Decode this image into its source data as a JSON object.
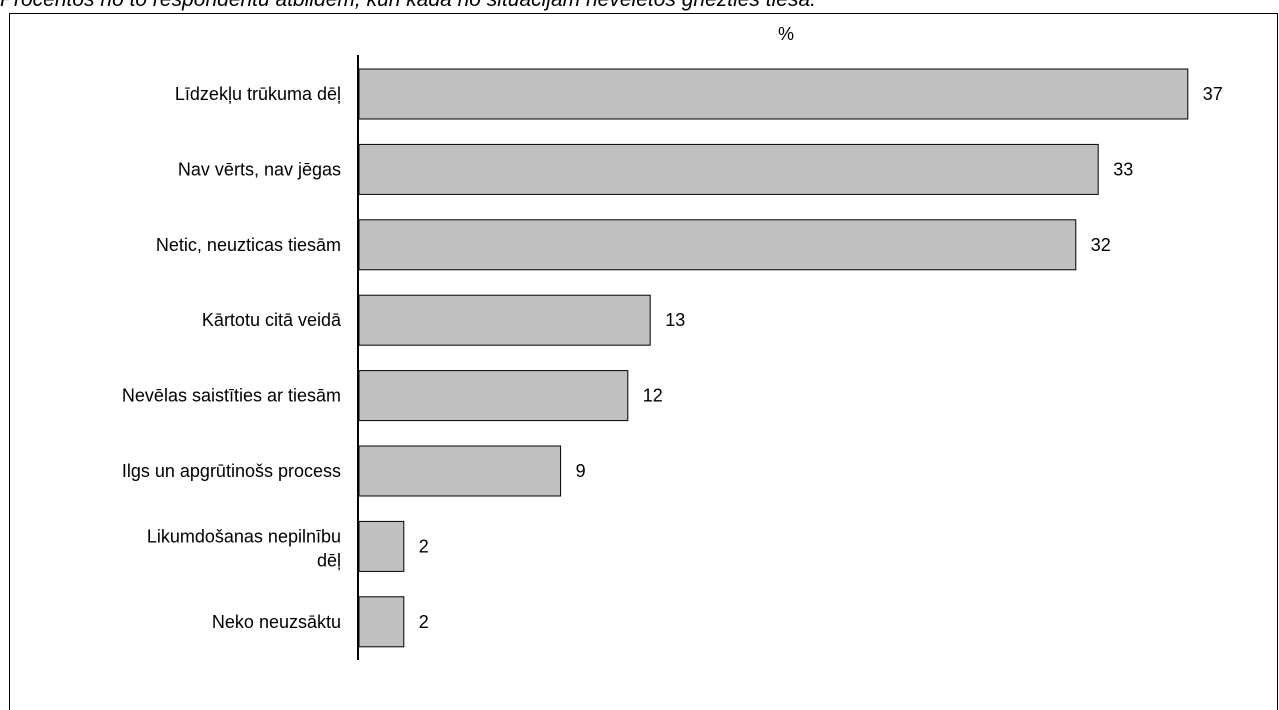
{
  "chart_data": {
    "type": "bar",
    "orientation": "horizontal",
    "title": "Procentos no to respondentu atbildēm, kuri kādā no situācijām nevēlētos griezties tiesā.",
    "unit_label": "%",
    "categories": [
      "Līdzekļu trūkuma dēļ",
      "Nav vērts, nav jēgas",
      "Netic, neuzticas tiesām",
      "Kārtotu citā veidā",
      "Nevēlas saistīties ar tiesām",
      "Ilgs un apgrūtinošs process",
      "Likumdošanas nepilnību dēļ",
      "Neko neuzsāktu"
    ],
    "values": [
      37,
      33,
      32,
      13,
      12,
      9,
      2,
      2
    ],
    "data_labels": [
      "37",
      "33",
      "32",
      "13",
      "12",
      "9",
      "2",
      "2"
    ],
    "bar_color": "#c0c0c0",
    "bar_border_color": "#000000",
    "grid": false
  }
}
